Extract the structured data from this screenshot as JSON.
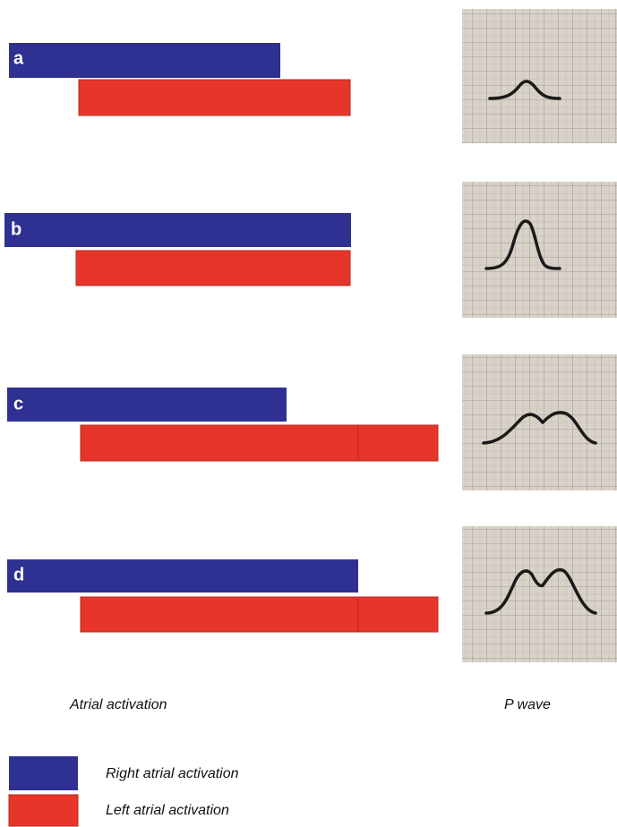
{
  "panels": [
    {
      "label": "a"
    },
    {
      "label": "b"
    },
    {
      "label": "c"
    },
    {
      "label": "d"
    }
  ],
  "captions": {
    "left": "Atrial activation",
    "right": "P wave"
  },
  "legend": [
    {
      "label": "Right atrial activation"
    },
    {
      "label": "Left atrial activation"
    }
  ]
}
